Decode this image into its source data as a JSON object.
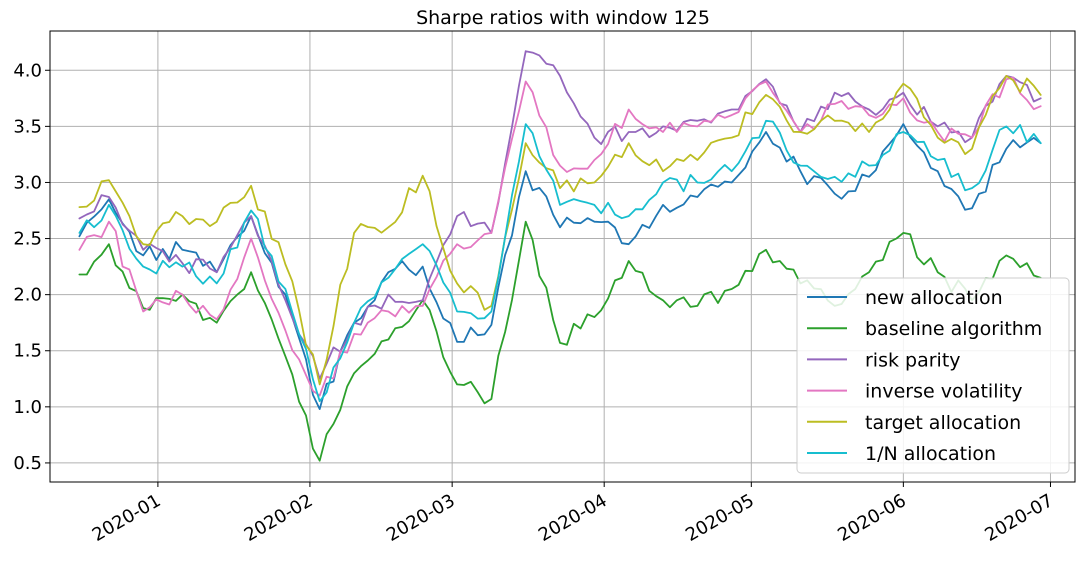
{
  "chart_data": {
    "type": "line",
    "title": "Sharpe ratios with window 125",
    "xlabel": "",
    "ylabel": "",
    "x_ticks": [
      "2020-01",
      "2020-02",
      "2020-03",
      "2020-04",
      "2020-05",
      "2020-06",
      "2020-07"
    ],
    "y_ticks": [
      "0.5",
      "1.0",
      "1.5",
      "2.0",
      "2.5",
      "3.0",
      "3.5",
      "4.0"
    ],
    "xlim": [
      "2019-12-10",
      "2020-07-06"
    ],
    "ylim": [
      0.33,
      4.35
    ],
    "grid": true,
    "legend_position": "lower-right",
    "x": [
      "2019-12-16",
      "2019-12-22",
      "2019-12-29",
      "2020-01-06",
      "2020-01-13",
      "2020-01-20",
      "2020-01-27",
      "2020-02-03",
      "2020-02-10",
      "2020-02-17",
      "2020-02-24",
      "2020-03-02",
      "2020-03-09",
      "2020-03-16",
      "2020-03-23",
      "2020-03-30",
      "2020-04-06",
      "2020-04-13",
      "2020-04-20",
      "2020-04-27",
      "2020-05-04",
      "2020-05-11",
      "2020-05-18",
      "2020-05-25",
      "2020-06-01",
      "2020-06-08",
      "2020-06-15",
      "2020-06-22",
      "2020-06-29"
    ],
    "series": [
      {
        "name": "new allocation",
        "color": "#1f77b4",
        "values": [
          2.52,
          2.85,
          2.35,
          2.4,
          2.2,
          2.7,
          2.0,
          0.98,
          1.75,
          2.2,
          2.25,
          1.58,
          1.73,
          3.1,
          2.6,
          2.65,
          2.45,
          2.8,
          2.87,
          3.0,
          3.45,
          3.1,
          2.9,
          3.05,
          3.52,
          3.1,
          2.77,
          3.3,
          3.35
        ]
      },
      {
        "name": "baseline algorithm",
        "color": "#2ca02c",
        "values": [
          2.18,
          2.45,
          1.88,
          2.0,
          1.75,
          2.2,
          1.45,
          0.52,
          1.3,
          1.6,
          1.95,
          1.2,
          1.07,
          2.65,
          1.57,
          1.8,
          2.3,
          1.95,
          1.9,
          2.05,
          2.4,
          2.1,
          1.9,
          2.2,
          2.55,
          2.2,
          1.95,
          2.35,
          2.15
        ]
      },
      {
        "name": "risk parity",
        "color": "#9467bd",
        "values": [
          2.68,
          2.87,
          2.4,
          2.28,
          2.2,
          2.7,
          1.95,
          1.25,
          1.75,
          2.0,
          1.95,
          2.7,
          2.55,
          4.17,
          3.95,
          3.4,
          3.45,
          3.5,
          3.55,
          3.65,
          3.92,
          3.45,
          3.8,
          3.65,
          3.8,
          3.5,
          3.4,
          3.95,
          3.75
        ]
      },
      {
        "name": "inverse volatility",
        "color": "#e377c2",
        "values": [
          2.4,
          2.65,
          1.85,
          2.0,
          1.78,
          2.5,
          1.68,
          1.1,
          1.65,
          1.85,
          1.9,
          2.45,
          2.55,
          3.9,
          3.15,
          3.2,
          3.65,
          3.45,
          3.5,
          3.6,
          3.9,
          3.45,
          3.7,
          3.6,
          3.75,
          3.45,
          3.4,
          3.92,
          3.68
        ]
      },
      {
        "name": "target allocation",
        "color": "#bcbd22",
        "values": [
          2.78,
          3.02,
          2.45,
          2.7,
          2.65,
          2.97,
          2.27,
          1.2,
          2.55,
          2.6,
          3.06,
          2.1,
          1.9,
          3.35,
          2.95,
          3.0,
          3.35,
          3.1,
          3.2,
          3.4,
          3.78,
          3.45,
          3.55,
          3.45,
          3.88,
          3.4,
          3.3,
          3.95,
          3.78
        ]
      },
      {
        "name": "1/N allocation",
        "color": "#17becf",
        "values": [
          2.55,
          2.8,
          2.25,
          2.25,
          2.1,
          2.75,
          2.05,
          1.05,
          1.75,
          2.15,
          2.45,
          1.85,
          1.85,
          3.52,
          2.8,
          2.8,
          2.7,
          3.0,
          3.0,
          3.1,
          3.55,
          3.15,
          3.05,
          3.15,
          3.45,
          3.2,
          2.95,
          3.5,
          3.35
        ]
      }
    ]
  }
}
